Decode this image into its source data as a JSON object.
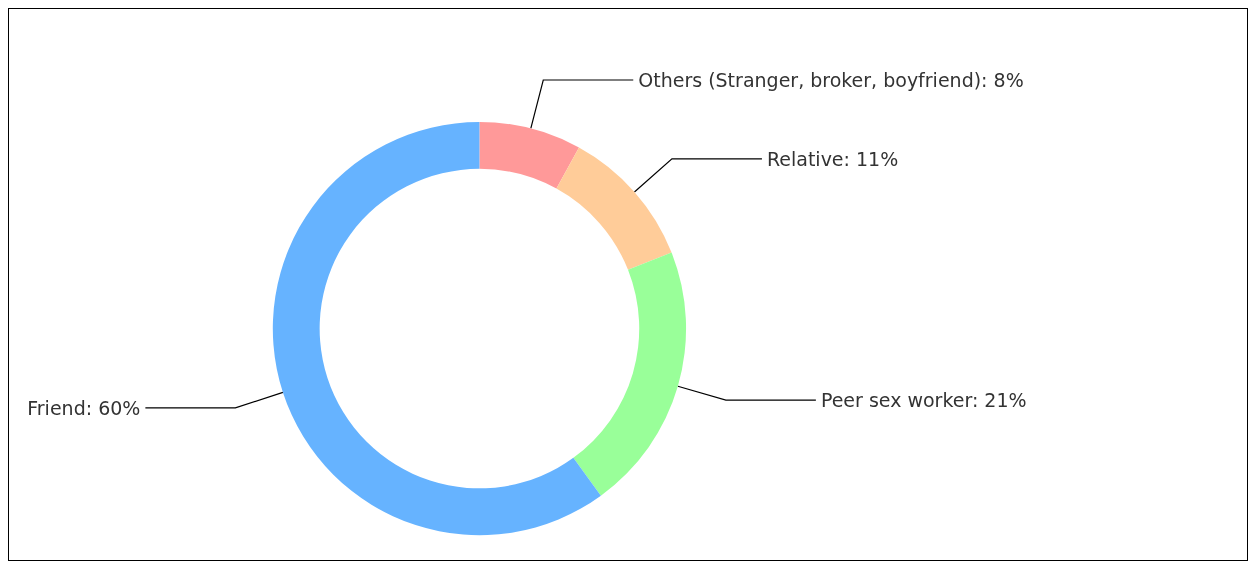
{
  "chart_data": {
    "type": "donut",
    "categories": [
      "Others (Stranger, broker, boyfriend)",
      "Relative",
      "Peer sex worker",
      "Friend"
    ],
    "values": [
      8,
      11,
      21,
      60
    ],
    "value_labels": [
      "8%",
      "11%",
      "21%",
      "60%"
    ],
    "colors": [
      "#ff9999",
      "#ffcc99",
      "#99ff99",
      "#66b3ff"
    ]
  }
}
